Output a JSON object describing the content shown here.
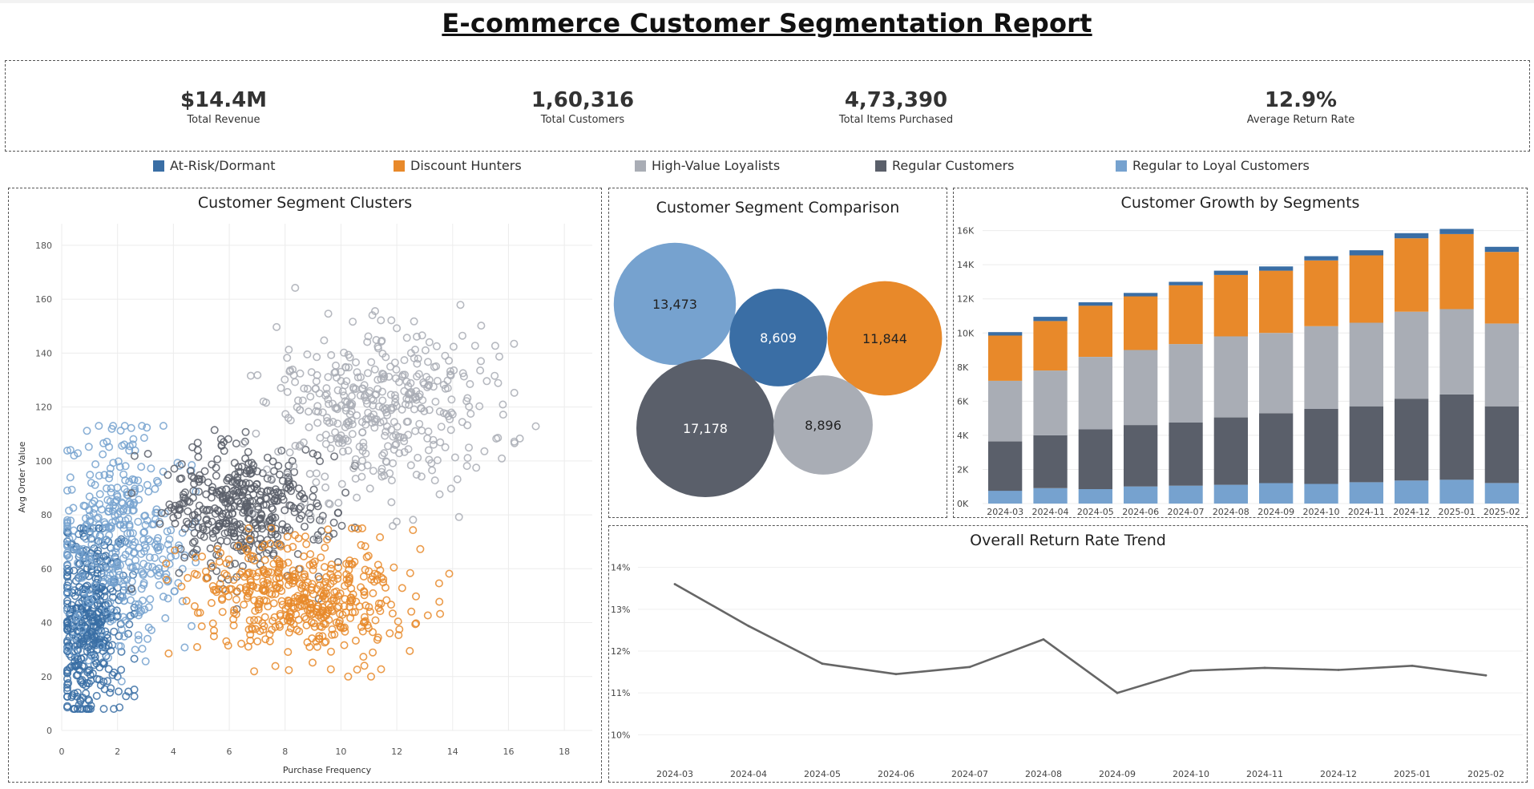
{
  "page": {
    "title": "E-commerce Customer Segmentation Report"
  },
  "kpis": [
    {
      "value": "$14.4M",
      "label": "Total Revenue"
    },
    {
      "value": "1,60,316",
      "label": "Total Customers"
    },
    {
      "value": "4,73,390",
      "label": "Total Items Purchased"
    },
    {
      "value": "12.9%",
      "label": "Average Return Rate"
    }
  ],
  "legend": [
    {
      "label": "At-Risk/Dormant",
      "color": "#3a6ea5"
    },
    {
      "label": "Discount Hunters",
      "color": "#e8892a"
    },
    {
      "label": "High-Value Loyalists",
      "color": "#a9adb5"
    },
    {
      "label": "Regular Customers",
      "color": "#5a5f6a"
    },
    {
      "label": "Regular to Loyal Customers",
      "color": "#76a2cf"
    }
  ],
  "chart_data": [
    {
      "type": "scatter",
      "title": "Customer Segment Clusters",
      "xlabel": "Purchase Frequency",
      "ylabel": "Avg Order Value",
      "xlim": [
        0,
        19
      ],
      "ylim": [
        0,
        188
      ],
      "xticks": [
        0,
        2,
        4,
        6,
        8,
        10,
        12,
        14,
        16,
        18
      ],
      "yticks": [
        0,
        20,
        40,
        60,
        80,
        100,
        120,
        140,
        160,
        180
      ],
      "grid": true,
      "marker": "open-circle",
      "series": [
        {
          "name": "At-Risk/Dormant",
          "color": "#3a6ea5",
          "center_x": 1.0,
          "center_y": 40,
          "spread_x": 0.6,
          "spread_y": 18,
          "x_range": [
            0.2,
            2.6
          ],
          "y_range": [
            8,
            75
          ],
          "count": 420
        },
        {
          "name": "Regular to Loyal Customers",
          "color": "#76a2cf",
          "center_x": 2.2,
          "center_y": 70,
          "spread_x": 1.2,
          "spread_y": 20,
          "x_range": [
            0.2,
            4.8
          ],
          "y_range": [
            8,
            113
          ],
          "count": 380
        },
        {
          "name": "Regular Customers",
          "color": "#5a5f6a",
          "center_x": 6.5,
          "center_y": 82,
          "spread_x": 1.5,
          "spread_y": 12,
          "x_range": [
            2.5,
            10.5
          ],
          "y_range": [
            45,
            130
          ],
          "count": 420
        },
        {
          "name": "Discount Hunters",
          "color": "#e8892a",
          "center_x": 8.5,
          "center_y": 50,
          "spread_x": 2.0,
          "spread_y": 10,
          "x_range": [
            3.5,
            14.0
          ],
          "y_range": [
            20,
            75
          ],
          "count": 480
        },
        {
          "name": "High-Value Loyalists",
          "color": "#a9adb5",
          "center_x": 11.5,
          "center_y": 120,
          "spread_x": 2.0,
          "spread_y": 16,
          "x_range": [
            6.5,
            18.5
          ],
          "y_range": [
            70,
            177
          ],
          "count": 420
        }
      ]
    },
    {
      "type": "bubble",
      "title": "Customer Segment Comparison",
      "bubbles": [
        {
          "segment": "Regular to Loyal Customers",
          "value": 13473,
          "label": "13,473",
          "color": "#76a2cf"
        },
        {
          "segment": "At-Risk/Dormant",
          "value": 8609,
          "label": "8,609",
          "color": "#3a6ea5"
        },
        {
          "segment": "Discount Hunters",
          "value": 11844,
          "label": "11,844",
          "color": "#e8892a"
        },
        {
          "segment": "Regular Customers",
          "value": 17178,
          "label": "17,178",
          "color": "#5a5f6a"
        },
        {
          "segment": "High-Value Loyalists",
          "value": 8896,
          "label": "8,896",
          "color": "#a9adb5"
        }
      ]
    },
    {
      "type": "bar",
      "stacked": true,
      "title": "Customer Growth by Segments",
      "categories": [
        "2024-03",
        "2024-04",
        "2024-05",
        "2024-06",
        "2024-07",
        "2024-08",
        "2024-09",
        "2024-10",
        "2024-11",
        "2024-12",
        "2025-01",
        "2025-02"
      ],
      "ylim": [
        0,
        16500
      ],
      "yticks": [
        0,
        2000,
        4000,
        6000,
        8000,
        10000,
        12000,
        14000,
        16000
      ],
      "ytick_labels": [
        "0K",
        "2K",
        "4K",
        "6K",
        "8K",
        "10K",
        "12K",
        "14K",
        "16K"
      ],
      "series": [
        {
          "name": "Regular to Loyal Customers",
          "color": "#76a2cf",
          "values": [
            750,
            900,
            850,
            1000,
            1050,
            1100,
            1200,
            1150,
            1250,
            1350,
            1400,
            1200
          ]
        },
        {
          "name": "Regular Customers",
          "color": "#5a5f6a",
          "values": [
            2900,
            3100,
            3500,
            3600,
            3700,
            3950,
            4100,
            4400,
            4450,
            4800,
            5000,
            4500
          ]
        },
        {
          "name": "High-Value Loyalists",
          "color": "#a9adb5",
          "values": [
            3550,
            3800,
            4250,
            4400,
            4600,
            4750,
            4700,
            4850,
            4900,
            5100,
            5000,
            4850
          ]
        },
        {
          "name": "Discount Hunters",
          "color": "#e8892a",
          "values": [
            2650,
            2900,
            3000,
            3150,
            3450,
            3600,
            3650,
            3850,
            3950,
            4300,
            4400,
            4200
          ]
        },
        {
          "name": "At-Risk/Dormant",
          "color": "#3a6ea5",
          "values": [
            200,
            250,
            200,
            200,
            200,
            250,
            250,
            250,
            300,
            300,
            300,
            300
          ]
        }
      ]
    },
    {
      "type": "line",
      "title": "Overall Return Rate Trend",
      "categories": [
        "2024-03",
        "2024-04",
        "2024-05",
        "2024-06",
        "2024-07",
        "2024-08",
        "2024-09",
        "2024-10",
        "2024-11",
        "2024-12",
        "2025-01",
        "2025-02"
      ],
      "values": [
        13.6,
        12.6,
        11.7,
        11.45,
        11.62,
        12.28,
        11.0,
        11.53,
        11.6,
        11.55,
        11.65,
        11.42
      ],
      "ylim": [
        9.7,
        14.3
      ],
      "yticks": [
        10,
        11,
        12,
        13,
        14
      ],
      "ytick_labels": [
        "10%",
        "11%",
        "12%",
        "13%",
        "14%"
      ],
      "color": "#666666"
    }
  ]
}
